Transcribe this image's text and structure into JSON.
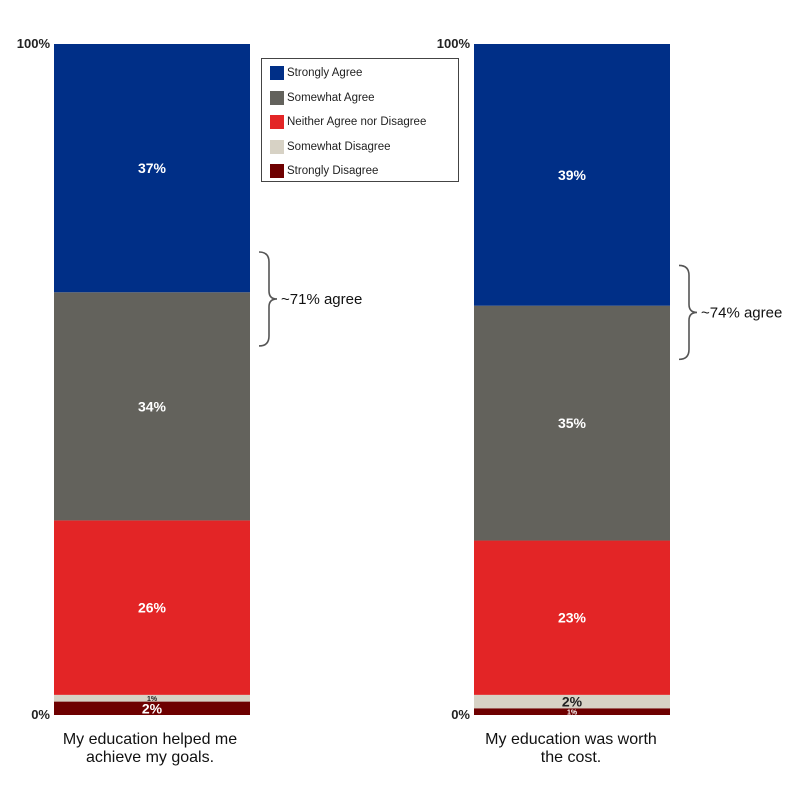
{
  "chart_data": {
    "type": "bar",
    "stacked": true,
    "percent": true,
    "ylim": [
      0,
      100
    ],
    "y_tick_labels": [
      "0%",
      "100%"
    ],
    "categories": [
      "My education helped me achieve my goals.",
      "My education was worth the cost."
    ],
    "category_lines": [
      [
        "My education helped me",
        "achieve my goals."
      ],
      [
        "My education was worth",
        "the cost."
      ]
    ],
    "series": [
      {
        "name": "Strongly Agree",
        "color": "#002f87",
        "values": [
          37,
          39
        ],
        "labels": [
          "37%",
          "39%"
        ]
      },
      {
        "name": "Somewhat Agree",
        "color": "#63625c",
        "values": [
          34,
          35
        ],
        "labels": [
          "34%",
          "35%"
        ]
      },
      {
        "name": "Neither Agree nor Disagree",
        "color": "#e32526",
        "values": [
          26,
          23
        ],
        "labels": [
          "26%",
          "23%"
        ]
      },
      {
        "name": "Somewhat Disagree",
        "color": "#d7d2c5",
        "values": [
          1,
          2
        ],
        "labels": [
          "1%",
          "2%"
        ]
      },
      {
        "name": "Strongly Disagree",
        "color": "#6e0000",
        "values": [
          2,
          1
        ],
        "labels": [
          "2%",
          "1%"
        ]
      }
    ],
    "annotations": [
      {
        "bar": 0,
        "text": "~71% agree",
        "from": 55,
        "to": 69
      },
      {
        "bar": 1,
        "text": "~74% agree",
        "from": 53,
        "to": 67
      }
    ],
    "legend_placement": "top-right of first bar",
    "grid": false
  }
}
